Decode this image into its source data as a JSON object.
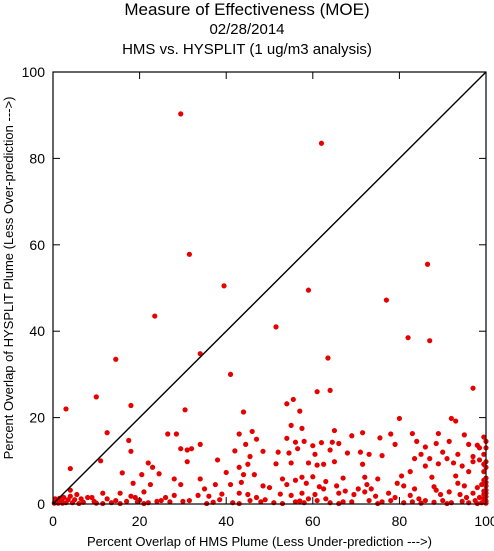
{
  "chart_data": {
    "type": "scatter",
    "title": "Measure of Effectiveness (MOE)",
    "subtitle": "02/28/2014",
    "subtitle2": "HMS vs. HYSPLIT  (1 ug/m3 analysis)",
    "xlabel": "Percent Overlap of HMS Plume (Less Under-prediction --->)",
    "ylabel": "Percent Overlap of HYSPLIT Plume (Less Over-prediction --->)",
    "xlim": [
      0,
      100
    ],
    "ylim": [
      0,
      100
    ],
    "xticks": [
      "0",
      "20",
      "40",
      "60",
      "80",
      "100"
    ],
    "yticks": [
      "0",
      "20",
      "40",
      "60",
      "80",
      "100"
    ],
    "grid": false,
    "diagonal_reference_line": true,
    "point_color": "#e60000",
    "points": [
      [
        29.5,
        90.3
      ],
      [
        62,
        83.5
      ],
      [
        86.5,
        55.5
      ],
      [
        31.5,
        57.8
      ],
      [
        39.5,
        50.5
      ],
      [
        59,
        49.5
      ],
      [
        77,
        47.2
      ],
      [
        23.5,
        43.5
      ],
      [
        51.5,
        41
      ],
      [
        82,
        38.5
      ],
      [
        87,
        37.8
      ],
      [
        34,
        34.8
      ],
      [
        63.5,
        33.8
      ],
      [
        14.5,
        33.5
      ],
      [
        41,
        30
      ],
      [
        61,
        26
      ],
      [
        64,
        26.3
      ],
      [
        97,
        26.8
      ],
      [
        10,
        24.8
      ],
      [
        55.5,
        24.2
      ],
      [
        78,
        16.2
      ],
      [
        54,
        23.2
      ],
      [
        3,
        22
      ],
      [
        18,
        22.8
      ],
      [
        30.5,
        21.8
      ],
      [
        44,
        21.3
      ],
      [
        57,
        21.5
      ],
      [
        80,
        19.8
      ],
      [
        83,
        16.3
      ],
      [
        92,
        19.8
      ],
      [
        93,
        19.2
      ],
      [
        12.5,
        16.5
      ],
      [
        26.5,
        16.2
      ],
      [
        28.5,
        16.2
      ],
      [
        43,
        16.2
      ],
      [
        46,
        16.8
      ],
      [
        55,
        18.2
      ],
      [
        57.5,
        17.5
      ],
      [
        65,
        17
      ],
      [
        71.5,
        16.5
      ],
      [
        89,
        16.3
      ],
      [
        95,
        16
      ],
      [
        99.5,
        15.5
      ],
      [
        17.5,
        14.7
      ],
      [
        34,
        13.8
      ],
      [
        44.5,
        13.8
      ],
      [
        47,
        15
      ],
      [
        54,
        15.2
      ],
      [
        56,
        14.3
      ],
      [
        58,
        14.5
      ],
      [
        60,
        13.5
      ],
      [
        62,
        14.2
      ],
      [
        64.5,
        14.3
      ],
      [
        66,
        14
      ],
      [
        69,
        15.8
      ],
      [
        75.5,
        15.3
      ],
      [
        79,
        13.8
      ],
      [
        84,
        14.5
      ],
      [
        86,
        13.2
      ],
      [
        88.5,
        14
      ],
      [
        91.5,
        14.5
      ],
      [
        96,
        13.8
      ],
      [
        98,
        13.6
      ],
      [
        98.5,
        13
      ],
      [
        18,
        12.2
      ],
      [
        29.5,
        12.8
      ],
      [
        31,
        12.5
      ],
      [
        32,
        12.8
      ],
      [
        42,
        12.3
      ],
      [
        45.5,
        11
      ],
      [
        48.5,
        12.2
      ],
      [
        52,
        12
      ],
      [
        54.5,
        11.8
      ],
      [
        56.5,
        12.8
      ],
      [
        60.5,
        11.5
      ],
      [
        64,
        12.5
      ],
      [
        68,
        11.8
      ],
      [
        71,
        12
      ],
      [
        73,
        11.5
      ],
      [
        76,
        11.2
      ],
      [
        85,
        11.5
      ],
      [
        87,
        10.5
      ],
      [
        90,
        12
      ],
      [
        91,
        10.5
      ],
      [
        93.5,
        11.5
      ],
      [
        97,
        11
      ],
      [
        99.5,
        11.5
      ],
      [
        11,
        10
      ],
      [
        22,
        9.5
      ],
      [
        23,
        8.5
      ],
      [
        31,
        9.8
      ],
      [
        38,
        10.2
      ],
      [
        43,
        8.5
      ],
      [
        45,
        9.2
      ],
      [
        51.5,
        9.3
      ],
      [
        55,
        9.5
      ],
      [
        59,
        9.5
      ],
      [
        61,
        9
      ],
      [
        62.5,
        9.2
      ],
      [
        65,
        9.8
      ],
      [
        71.5,
        9.2
      ],
      [
        83.5,
        10.5
      ],
      [
        86,
        8.8
      ],
      [
        89,
        9.3
      ],
      [
        92.5,
        9.5
      ],
      [
        94.5,
        8.8
      ],
      [
        97,
        9.8
      ],
      [
        98.5,
        10.2
      ],
      [
        100,
        9.8
      ],
      [
        4,
        8.2
      ],
      [
        16,
        7.2
      ],
      [
        20.5,
        6.8
      ],
      [
        24.5,
        7
      ],
      [
        28,
        5.8
      ],
      [
        34,
        5.8
      ],
      [
        40,
        7.3
      ],
      [
        44,
        6.8
      ],
      [
        46.5,
        6.8
      ],
      [
        53,
        5.8
      ],
      [
        56,
        5.5
      ],
      [
        57.5,
        6.2
      ],
      [
        60,
        6.3
      ],
      [
        63,
        5.2
      ],
      [
        67,
        6
      ],
      [
        72,
        6.2
      ],
      [
        75,
        5.8
      ],
      [
        80.5,
        6.5
      ],
      [
        82.5,
        7.5
      ],
      [
        87.5,
        6.2
      ],
      [
        93,
        6.5
      ],
      [
        96,
        7.5
      ],
      [
        99.5,
        7.5
      ],
      [
        18.5,
        4.8
      ],
      [
        22.5,
        4.5
      ],
      [
        29.5,
        4.5
      ],
      [
        35,
        3.5
      ],
      [
        37.5,
        4.5
      ],
      [
        41,
        4.5
      ],
      [
        43.5,
        5
      ],
      [
        48.5,
        4.2
      ],
      [
        50,
        3.8
      ],
      [
        54,
        4.5
      ],
      [
        58.5,
        4.8
      ],
      [
        61.5,
        4
      ],
      [
        62.5,
        3.5
      ],
      [
        65.5,
        4.2
      ],
      [
        70.5,
        3.5
      ],
      [
        72.5,
        4.5
      ],
      [
        73.5,
        3.5
      ],
      [
        79.5,
        4.8
      ],
      [
        81,
        4.2
      ],
      [
        83.5,
        3.5
      ],
      [
        88,
        4
      ],
      [
        93.5,
        4.8
      ],
      [
        95,
        4.2
      ],
      [
        98,
        3.8
      ],
      [
        99,
        4.5
      ],
      [
        100,
        5
      ],
      [
        4,
        3.2
      ],
      [
        5.5,
        2.2
      ],
      [
        9,
        1.5
      ],
      [
        11.5,
        2.5
      ],
      [
        12.5,
        1.2
      ],
      [
        15.5,
        2.5
      ],
      [
        18,
        1.8
      ],
      [
        19,
        1.5
      ],
      [
        21,
        2.8
      ],
      [
        26,
        1.5
      ],
      [
        28,
        2
      ],
      [
        33.5,
        2
      ],
      [
        36,
        1.8
      ],
      [
        39,
        2.3
      ],
      [
        43,
        2.5
      ],
      [
        45,
        2.2
      ],
      [
        47,
        1.5
      ],
      [
        49,
        1
      ],
      [
        52.5,
        2.3
      ],
      [
        55,
        2
      ],
      [
        57.5,
        2.5
      ],
      [
        59,
        1.2
      ],
      [
        60.5,
        2.2
      ],
      [
        63,
        1.2
      ],
      [
        66,
        2.5
      ],
      [
        67.5,
        3
      ],
      [
        69.5,
        2.2
      ],
      [
        72,
        2.8
      ],
      [
        74.5,
        1.8
      ],
      [
        77.5,
        2.5
      ],
      [
        82.5,
        2
      ],
      [
        84.5,
        1.2
      ],
      [
        88.5,
        3.2
      ],
      [
        89.5,
        2.2
      ],
      [
        91.5,
        2.8
      ],
      [
        94,
        2.2
      ],
      [
        95.5,
        1.5
      ],
      [
        97,
        2.5
      ],
      [
        98.5,
        1.5
      ],
      [
        0.5,
        1.2
      ],
      [
        1,
        0.5
      ],
      [
        1.5,
        1.3
      ],
      [
        2,
        0.8
      ],
      [
        2.5,
        1.5
      ],
      [
        3,
        0.3
      ],
      [
        3.5,
        1
      ],
      [
        4,
        1.8
      ],
      [
        5,
        1
      ],
      [
        6.5,
        1.2
      ],
      [
        7,
        0.4
      ],
      [
        8,
        1.5
      ],
      [
        9.5,
        0.6
      ],
      [
        10,
        0.2
      ],
      [
        13.5,
        0.3
      ],
      [
        14.5,
        0.8
      ],
      [
        17,
        0.6
      ],
      [
        19.5,
        0.5
      ],
      [
        20,
        0.9
      ],
      [
        22,
        0.3
      ],
      [
        24,
        0.6
      ],
      [
        25,
        0.8
      ],
      [
        27,
        0.5
      ],
      [
        30,
        0.6
      ],
      [
        31.5,
        0.8
      ],
      [
        37,
        0.4
      ],
      [
        38.5,
        1
      ],
      [
        41.5,
        0.3
      ],
      [
        45.5,
        0.8
      ],
      [
        48,
        0.5
      ],
      [
        51,
        0.3
      ],
      [
        56,
        0.5
      ],
      [
        57,
        0.7
      ],
      [
        58,
        0.3
      ],
      [
        61,
        0.8
      ],
      [
        64,
        0.3
      ],
      [
        67,
        0.5
      ],
      [
        69,
        0.5
      ],
      [
        73,
        0.8
      ],
      [
        76,
        0.5
      ],
      [
        78,
        0.8
      ],
      [
        79,
        1.5
      ],
      [
        81,
        0.3
      ],
      [
        83,
        0.5
      ],
      [
        86,
        0.8
      ],
      [
        88,
        0.4
      ],
      [
        90,
        0.8
      ],
      [
        92,
        0.3
      ],
      [
        94.5,
        0.6
      ],
      [
        96,
        0.3
      ],
      [
        97.5,
        0.8
      ],
      [
        99,
        0.3
      ],
      [
        99.5,
        1.2
      ],
      [
        0.3,
        0.2
      ],
      [
        1.2,
        0.2
      ],
      [
        2.2,
        0.2
      ],
      [
        4.5,
        0.3
      ],
      [
        6,
        0.1
      ],
      [
        11.5,
        0.1
      ],
      [
        15.5,
        0.1
      ],
      [
        21,
        0.1
      ],
      [
        35.5,
        0.1
      ],
      [
        43,
        0.1
      ],
      [
        53,
        0.1
      ],
      [
        66,
        0.1
      ],
      [
        75,
        0.1
      ],
      [
        85,
        0.2
      ],
      [
        91,
        0.1
      ],
      [
        98,
        0.1
      ],
      [
        100,
        0.2
      ],
      [
        100,
        0.7
      ],
      [
        100,
        1.7
      ],
      [
        100,
        2.5
      ],
      [
        100,
        3.2
      ],
      [
        100,
        4.2
      ],
      [
        100,
        6
      ],
      [
        100,
        8.5
      ],
      [
        100,
        13
      ],
      [
        100,
        14.5
      ],
      [
        99.5,
        2.2
      ],
      [
        99.5,
        3
      ],
      [
        99.5,
        5.5
      ],
      [
        99.5,
        9.2
      ]
    ]
  }
}
